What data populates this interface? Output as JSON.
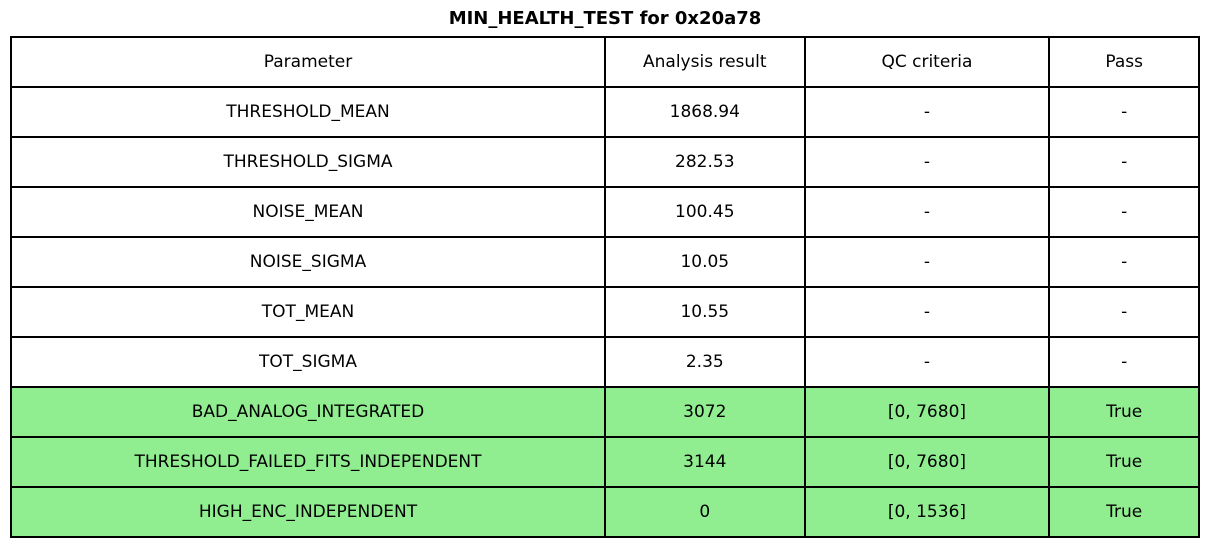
{
  "title": "MIN_HEALTH_TEST for 0x20a78",
  "colors": {
    "pass_row_highlight": "#90ee90",
    "border": "#000000",
    "background": "#ffffff",
    "text": "#000000"
  },
  "chart_data": {
    "type": "table",
    "title": "MIN_HEALTH_TEST for 0x20a78",
    "columns": [
      "Parameter",
      "Analysis result",
      "QC criteria",
      "Pass"
    ],
    "rows": [
      [
        "THRESHOLD_MEAN",
        "1868.94",
        "-",
        "-"
      ],
      [
        "THRESHOLD_SIGMA",
        "282.53",
        "-",
        "-"
      ],
      [
        "NOISE_MEAN",
        "100.45",
        "-",
        "-"
      ],
      [
        "NOISE_SIGMA",
        "10.05",
        "-",
        "-"
      ],
      [
        "TOT_MEAN",
        "10.55",
        "-",
        "-"
      ],
      [
        "TOT_SIGMA",
        "2.35",
        "-",
        "-"
      ],
      [
        "BAD_ANALOG_INTEGRATED",
        "3072",
        "[0, 7680]",
        "True"
      ],
      [
        "THRESHOLD_FAILED_FITS_INDEPENDENT",
        "3144",
        "[0, 7680]",
        "True"
      ],
      [
        "HIGH_ENC_INDEPENDENT",
        "0",
        "[0, 1536]",
        "True"
      ]
    ],
    "highlighted_row_indices": [
      6,
      7,
      8
    ],
    "highlight_color": "#90ee90",
    "legend_position": "none",
    "grid": "full-cell-borders"
  }
}
